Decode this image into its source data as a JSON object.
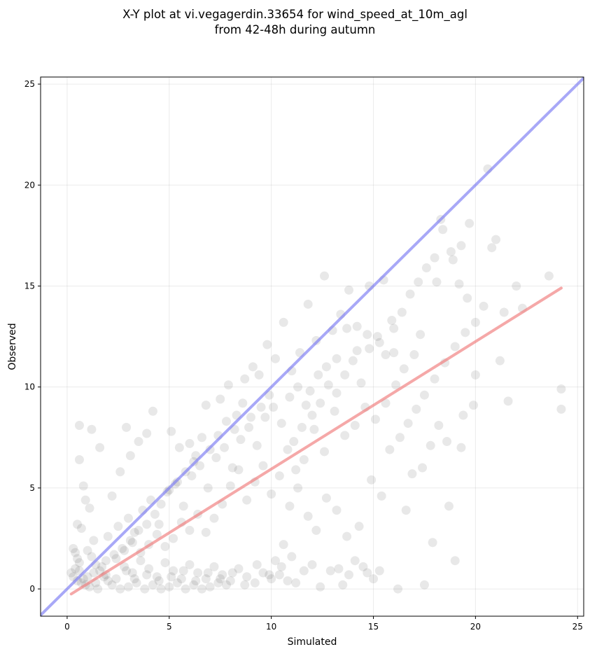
{
  "chart_data": {
    "type": "scatter",
    "title_lines": [
      "X-Y plot at vi.vegagerdin.33654 for wind_speed_at_10m_agl",
      "from 42-48h during autumn"
    ],
    "xlabel": "Simulated",
    "ylabel": "Observed",
    "xlim": [
      -1.3,
      25.3
    ],
    "ylim": [
      -1.35,
      25.35
    ],
    "xticks": [
      0,
      5,
      10,
      15,
      20,
      25
    ],
    "yticks": [
      0,
      5,
      10,
      15,
      20,
      25
    ],
    "grid": true,
    "point_color": "#000000",
    "point_opacity": 0.09,
    "identity_line": {
      "from": [
        -1.3,
        -1.3
      ],
      "to": [
        25.3,
        25.3
      ],
      "color": "#7a7af2"
    },
    "fit_line": {
      "from": [
        0.2,
        -0.25
      ],
      "to": [
        24.2,
        14.9
      ],
      "color": "#f07a7a"
    },
    "points": [
      [
        0.6,
        8.1
      ],
      [
        0.6,
        6.4
      ],
      [
        1.2,
        7.9
      ],
      [
        1.6,
        7.0
      ],
      [
        0.8,
        5.1
      ],
      [
        0.9,
        4.4
      ],
      [
        1.1,
        4.0
      ],
      [
        0.5,
        3.2
      ],
      [
        0.7,
        3.0
      ],
      [
        1.3,
        2.4
      ],
      [
        0.3,
        2.0
      ],
      [
        0.4,
        1.8
      ],
      [
        0.5,
        1.5
      ],
      [
        0.6,
        1.3
      ],
      [
        0.4,
        1.0
      ],
      [
        0.2,
        0.8
      ],
      [
        0.3,
        0.6
      ],
      [
        0.5,
        0.4
      ],
      [
        0.7,
        0.3
      ],
      [
        0.9,
        0.2
      ],
      [
        1.0,
        1.9
      ],
      [
        1.2,
        1.6
      ],
      [
        1.4,
        1.2
      ],
      [
        1.6,
        0.9
      ],
      [
        1.8,
        0.6
      ],
      [
        2.0,
        0.4
      ],
      [
        1.1,
        0.1
      ],
      [
        1.5,
        0.0
      ],
      [
        2.2,
        0.2
      ],
      [
        2.6,
        0.0
      ],
      [
        3.0,
        0.1
      ],
      [
        3.4,
        0.3
      ],
      [
        3.8,
        0.0
      ],
      [
        4.2,
        0.2
      ],
      [
        4.6,
        0.0
      ],
      [
        5.0,
        0.1
      ],
      [
        5.4,
        0.3
      ],
      [
        5.8,
        0.0
      ],
      [
        6.2,
        0.2
      ],
      [
        6.6,
        0.0
      ],
      [
        7.0,
        0.1
      ],
      [
        7.4,
        0.3
      ],
      [
        7.8,
        0.2
      ],
      [
        2.4,
        1.5
      ],
      [
        2.8,
        1.1
      ],
      [
        3.2,
        0.8
      ],
      [
        3.6,
        1.4
      ],
      [
        4.0,
        1.0
      ],
      [
        4.4,
        0.6
      ],
      [
        4.8,
        1.3
      ],
      [
        5.2,
        0.9
      ],
      [
        5.6,
        0.5
      ],
      [
        6.0,
        1.2
      ],
      [
        6.4,
        0.8
      ],
      [
        6.8,
        0.5
      ],
      [
        7.2,
        1.1
      ],
      [
        7.6,
        0.7
      ],
      [
        8.0,
        0.4
      ],
      [
        8.4,
        1.0
      ],
      [
        8.8,
        0.6
      ],
      [
        9.2,
        0.3
      ],
      [
        9.6,
        0.8
      ],
      [
        10.0,
        0.5
      ],
      [
        10.4,
        0.7
      ],
      [
        10.8,
        0.4
      ],
      [
        2.0,
        2.6
      ],
      [
        2.5,
        3.1
      ],
      [
        3.0,
        3.5
      ],
      [
        3.3,
        2.8
      ],
      [
        3.7,
        3.9
      ],
      [
        4.1,
        4.4
      ],
      [
        4.5,
        3.2
      ],
      [
        4.9,
        4.8
      ],
      [
        5.3,
        5.2
      ],
      [
        5.7,
        4.1
      ],
      [
        6.1,
        5.6
      ],
      [
        6.5,
        6.1
      ],
      [
        6.9,
        5.0
      ],
      [
        7.3,
        6.5
      ],
      [
        7.7,
        7.0
      ],
      [
        8.1,
        6.0
      ],
      [
        8.5,
        7.4
      ],
      [
        8.9,
        8.0
      ],
      [
        9.3,
        7.1
      ],
      [
        9.7,
        8.5
      ],
      [
        10.1,
        9.0
      ],
      [
        10.5,
        8.2
      ],
      [
        10.9,
        9.5
      ],
      [
        11.3,
        10.0
      ],
      [
        11.7,
        9.1
      ],
      [
        2.2,
        4.6
      ],
      [
        2.6,
        5.8
      ],
      [
        3.1,
        6.6
      ],
      [
        3.5,
        7.3
      ],
      [
        3.9,
        7.7
      ],
      [
        4.2,
        8.8
      ],
      [
        2.9,
        8.0
      ],
      [
        5.1,
        7.8
      ],
      [
        5.5,
        7.0
      ],
      [
        6.0,
        7.2
      ],
      [
        6.3,
        6.6
      ],
      [
        6.8,
        9.1
      ],
      [
        7.5,
        9.4
      ],
      [
        7.9,
        10.1
      ],
      [
        8.3,
        8.6
      ],
      [
        8.7,
        10.4
      ],
      [
        9.1,
        11.0
      ],
      [
        9.4,
        10.6
      ],
      [
        9.8,
        12.1
      ],
      [
        10.2,
        11.4
      ],
      [
        10.6,
        13.2
      ],
      [
        11.0,
        10.8
      ],
      [
        11.4,
        11.7
      ],
      [
        11.8,
        14.1
      ],
      [
        12.2,
        12.3
      ],
      [
        12.6,
        15.5
      ],
      [
        13.0,
        12.8
      ],
      [
        13.4,
        13.6
      ],
      [
        13.8,
        14.8
      ],
      [
        14.2,
        13.0
      ],
      [
        11.1,
        7.3
      ],
      [
        11.5,
        8.0
      ],
      [
        12.0,
        8.6
      ],
      [
        12.4,
        9.2
      ],
      [
        12.8,
        10.1
      ],
      [
        13.2,
        9.7
      ],
      [
        13.6,
        10.6
      ],
      [
        14.0,
        11.3
      ],
      [
        14.4,
        10.2
      ],
      [
        14.8,
        11.9
      ],
      [
        15.2,
        12.5
      ],
      [
        15.6,
        11.6
      ],
      [
        16.0,
        12.9
      ],
      [
        16.4,
        13.7
      ],
      [
        16.8,
        14.6
      ],
      [
        17.2,
        15.2
      ],
      [
        17.6,
        15.9
      ],
      [
        18.0,
        16.4
      ],
      [
        18.4,
        17.8
      ],
      [
        18.8,
        16.7
      ],
      [
        19.2,
        15.1
      ],
      [
        19.6,
        14.4
      ],
      [
        20.0,
        13.2
      ],
      [
        20.4,
        14.0
      ],
      [
        20.8,
        16.9
      ],
      [
        21.0,
        17.3
      ],
      [
        21.4,
        13.7
      ],
      [
        22.0,
        15.0
      ],
      [
        22.3,
        13.9
      ],
      [
        23.6,
        15.5
      ],
      [
        24.2,
        9.9
      ],
      [
        24.2,
        8.9
      ],
      [
        21.2,
        11.3
      ],
      [
        21.6,
        9.3
      ],
      [
        19.9,
        9.1
      ],
      [
        19.3,
        7.0
      ],
      [
        18.7,
        4.1
      ],
      [
        19.0,
        1.4
      ],
      [
        17.9,
        2.3
      ],
      [
        17.5,
        0.2
      ],
      [
        16.2,
        0.0
      ],
      [
        15.0,
        0.5
      ],
      [
        14.5,
        1.1
      ],
      [
        13.8,
        0.7
      ],
      [
        13.3,
        1.0
      ],
      [
        12.4,
        0.1
      ],
      [
        11.6,
        0.9
      ],
      [
        11.0,
        1.6
      ],
      [
        10.6,
        2.2
      ],
      [
        10.2,
        1.4
      ],
      [
        15.4,
        4.6
      ],
      [
        14.9,
        5.4
      ],
      [
        14.3,
        3.1
      ],
      [
        13.7,
        2.6
      ],
      [
        13.2,
        3.9
      ],
      [
        12.7,
        4.5
      ],
      [
        12.2,
        2.9
      ],
      [
        11.8,
        3.6
      ],
      [
        11.3,
        5.0
      ],
      [
        10.9,
        4.1
      ],
      [
        10.4,
        5.6
      ],
      [
        10.0,
        4.7
      ],
      [
        9.6,
        6.1
      ],
      [
        9.2,
        5.3
      ],
      [
        8.8,
        4.4
      ],
      [
        8.4,
        5.9
      ],
      [
        8.0,
        5.1
      ],
      [
        7.6,
        4.2
      ],
      [
        7.2,
        3.5
      ],
      [
        6.8,
        2.8
      ],
      [
        6.4,
        3.7
      ],
      [
        6.0,
        2.9
      ],
      [
        5.6,
        3.3
      ],
      [
        5.2,
        2.5
      ],
      [
        4.8,
        2.1
      ],
      [
        4.4,
        2.7
      ],
      [
        4.0,
        2.2
      ],
      [
        3.6,
        1.8
      ],
      [
        3.2,
        2.3
      ],
      [
        2.8,
        1.9
      ],
      [
        15.8,
        6.9
      ],
      [
        16.3,
        7.5
      ],
      [
        16.7,
        8.2
      ],
      [
        17.1,
        8.9
      ],
      [
        17.5,
        9.6
      ],
      [
        18.0,
        10.4
      ],
      [
        18.5,
        11.2
      ],
      [
        19.0,
        12.0
      ],
      [
        19.5,
        12.7
      ],
      [
        20.0,
        10.6
      ],
      [
        15.1,
        8.4
      ],
      [
        14.6,
        9.0
      ],
      [
        14.1,
        8.1
      ],
      [
        13.6,
        7.6
      ],
      [
        13.1,
        8.8
      ],
      [
        12.6,
        6.8
      ],
      [
        12.1,
        7.9
      ],
      [
        11.6,
        6.4
      ],
      [
        11.2,
        5.9
      ],
      [
        10.8,
        6.9
      ],
      [
        9.9,
        9.6
      ],
      [
        9.5,
        9.0
      ],
      [
        9.0,
        8.5
      ],
      [
        8.6,
        9.2
      ],
      [
        8.2,
        7.9
      ],
      [
        7.8,
        8.3
      ],
      [
        7.4,
        7.6
      ],
      [
        7.0,
        6.9
      ],
      [
        6.6,
        7.5
      ],
      [
        6.2,
        6.3
      ],
      [
        5.8,
        5.8
      ],
      [
        5.4,
        5.3
      ],
      [
        5.0,
        4.9
      ],
      [
        4.6,
        4.2
      ],
      [
        4.3,
        3.7
      ],
      [
        3.9,
        3.2
      ],
      [
        3.5,
        2.9
      ],
      [
        3.1,
        2.4
      ],
      [
        2.7,
        2.0
      ],
      [
        2.3,
        1.7
      ],
      [
        1.9,
        1.4
      ],
      [
        1.7,
        1.1
      ],
      [
        1.3,
        0.8
      ],
      [
        1.0,
        0.6
      ],
      [
        0.8,
        0.5
      ],
      [
        0.6,
        0.9
      ],
      [
        1.4,
        0.3
      ],
      [
        1.9,
        0.7
      ],
      [
        2.4,
        0.5
      ],
      [
        2.9,
        0.9
      ],
      [
        3.3,
        0.5
      ],
      [
        3.9,
        0.7
      ],
      [
        4.5,
        0.4
      ],
      [
        5.1,
        0.6
      ],
      [
        5.7,
        0.9
      ],
      [
        6.3,
        0.4
      ],
      [
        6.9,
        0.8
      ],
      [
        7.5,
        0.5
      ],
      [
        8.1,
        0.8
      ],
      [
        8.7,
        0.2
      ],
      [
        9.3,
        1.2
      ],
      [
        9.9,
        0.7
      ],
      [
        10.5,
        1.1
      ],
      [
        11.2,
        0.3
      ],
      [
        12.0,
        1.2
      ],
      [
        12.9,
        0.9
      ],
      [
        13.5,
        0.2
      ],
      [
        14.1,
        1.4
      ],
      [
        14.7,
        0.8
      ],
      [
        15.3,
        0.9
      ],
      [
        16.6,
        3.9
      ],
      [
        17.4,
        6.0
      ],
      [
        16.9,
        5.7
      ],
      [
        17.8,
        7.1
      ],
      [
        18.2,
        8.1
      ],
      [
        18.6,
        7.3
      ],
      [
        19.4,
        8.6
      ],
      [
        17.0,
        11.6
      ],
      [
        16.5,
        10.9
      ],
      [
        16.1,
        10.1
      ],
      [
        15.6,
        9.2
      ],
      [
        15.9,
        13.3
      ],
      [
        15.3,
        12.2
      ],
      [
        14.7,
        12.6
      ],
      [
        14.2,
        11.8
      ],
      [
        13.7,
        12.9
      ],
      [
        13.2,
        11.4
      ],
      [
        12.7,
        11.0
      ],
      [
        12.3,
        10.6
      ],
      [
        11.9,
        9.8
      ],
      [
        18.3,
        18.3
      ],
      [
        18.9,
        16.3
      ],
      [
        19.7,
        18.1
      ],
      [
        20.6,
        20.8
      ],
      [
        19.3,
        17.0
      ],
      [
        18.1,
        15.2
      ],
      [
        17.3,
        12.6
      ],
      [
        16.0,
        11.7
      ],
      [
        15.5,
        15.3
      ],
      [
        14.8,
        15.0
      ]
    ]
  }
}
